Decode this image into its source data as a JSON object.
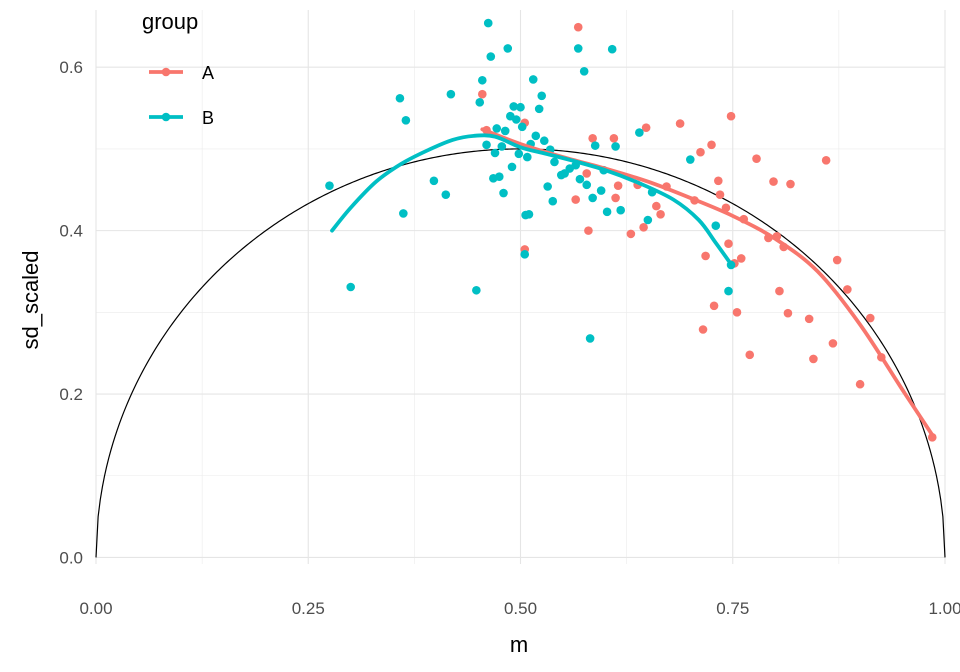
{
  "chart_data": {
    "type": "scatter",
    "title": "",
    "xlabel": "m",
    "ylabel": "sd_scaled",
    "xlim": [
      0,
      1
    ],
    "ylim": [
      -0.008,
      0.67
    ],
    "x_ticks": [
      0.0,
      0.25,
      0.5,
      0.75,
      1.0
    ],
    "x_tick_labels": [
      "0.00",
      "0.25",
      "0.50",
      "0.75",
      "1.00"
    ],
    "y_ticks": [
      0.0,
      0.2,
      0.4,
      0.6
    ],
    "y_tick_labels": [
      "0.0",
      "0.2",
      "0.4",
      "0.6"
    ],
    "grid": true,
    "legend": {
      "title": "group",
      "position": "top-left",
      "entries": [
        "A",
        "B"
      ]
    },
    "reference_curve": {
      "label": "",
      "formula": "sqrt(m*(1-m))",
      "color": "#000000"
    },
    "series": [
      {
        "name": "A",
        "color": "#F8766D",
        "points": [
          [
            0.455,
            0.567
          ],
          [
            0.46,
            0.523
          ],
          [
            0.505,
            0.532
          ],
          [
            0.505,
            0.377
          ],
          [
            0.565,
            0.438
          ],
          [
            0.568,
            0.649
          ],
          [
            0.578,
            0.47
          ],
          [
            0.58,
            0.4
          ],
          [
            0.585,
            0.513
          ],
          [
            0.61,
            0.513
          ],
          [
            0.612,
            0.44
          ],
          [
            0.615,
            0.455
          ],
          [
            0.63,
            0.396
          ],
          [
            0.638,
            0.456
          ],
          [
            0.645,
            0.404
          ],
          [
            0.648,
            0.526
          ],
          [
            0.66,
            0.43
          ],
          [
            0.665,
            0.42
          ],
          [
            0.672,
            0.454
          ],
          [
            0.688,
            0.531
          ],
          [
            0.705,
            0.437
          ],
          [
            0.712,
            0.496
          ],
          [
            0.715,
            0.279
          ],
          [
            0.718,
            0.369
          ],
          [
            0.725,
            0.505
          ],
          [
            0.728,
            0.308
          ],
          [
            0.733,
            0.461
          ],
          [
            0.735,
            0.444
          ],
          [
            0.742,
            0.428
          ],
          [
            0.745,
            0.384
          ],
          [
            0.748,
            0.54
          ],
          [
            0.752,
            0.36
          ],
          [
            0.755,
            0.3
          ],
          [
            0.76,
            0.366
          ],
          [
            0.763,
            0.414
          ],
          [
            0.77,
            0.248
          ],
          [
            0.778,
            0.488
          ],
          [
            0.792,
            0.391
          ],
          [
            0.798,
            0.46
          ],
          [
            0.802,
            0.393
          ],
          [
            0.805,
            0.326
          ],
          [
            0.81,
            0.38
          ],
          [
            0.815,
            0.299
          ],
          [
            0.818,
            0.457
          ],
          [
            0.84,
            0.292
          ],
          [
            0.845,
            0.243
          ],
          [
            0.86,
            0.486
          ],
          [
            0.868,
            0.262
          ],
          [
            0.873,
            0.364
          ],
          [
            0.885,
            0.328
          ],
          [
            0.9,
            0.212
          ],
          [
            0.912,
            0.293
          ],
          [
            0.925,
            0.245
          ],
          [
            0.985,
            0.147
          ]
        ],
        "smooth": [
          [
            0.455,
            0.524
          ],
          [
            0.5,
            0.506
          ],
          [
            0.55,
            0.49
          ],
          [
            0.6,
            0.476
          ],
          [
            0.65,
            0.46
          ],
          [
            0.7,
            0.44
          ],
          [
            0.75,
            0.418
          ],
          [
            0.8,
            0.39
          ],
          [
            0.85,
            0.35
          ],
          [
            0.9,
            0.285
          ],
          [
            0.95,
            0.205
          ],
          [
            0.985,
            0.15
          ]
        ]
      },
      {
        "name": "B",
        "color": "#00BFC4",
        "points": [
          [
            0.275,
            0.455
          ],
          [
            0.3,
            0.331
          ],
          [
            0.358,
            0.562
          ],
          [
            0.362,
            0.421
          ],
          [
            0.365,
            0.535
          ],
          [
            0.398,
            0.461
          ],
          [
            0.412,
            0.444
          ],
          [
            0.418,
            0.567
          ],
          [
            0.448,
            0.327
          ],
          [
            0.452,
            0.557
          ],
          [
            0.455,
            0.584
          ],
          [
            0.46,
            0.505
          ],
          [
            0.462,
            0.654
          ],
          [
            0.465,
            0.613
          ],
          [
            0.468,
            0.464
          ],
          [
            0.47,
            0.495
          ],
          [
            0.472,
            0.525
          ],
          [
            0.475,
            0.466
          ],
          [
            0.478,
            0.503
          ],
          [
            0.48,
            0.446
          ],
          [
            0.482,
            0.522
          ],
          [
            0.485,
            0.623
          ],
          [
            0.488,
            0.54
          ],
          [
            0.49,
            0.478
          ],
          [
            0.492,
            0.552
          ],
          [
            0.495,
            0.536
          ],
          [
            0.498,
            0.494
          ],
          [
            0.5,
            0.551
          ],
          [
            0.502,
            0.527
          ],
          [
            0.505,
            0.371
          ],
          [
            0.506,
            0.419
          ],
          [
            0.508,
            0.49
          ],
          [
            0.51,
            0.42
          ],
          [
            0.512,
            0.506
          ],
          [
            0.515,
            0.585
          ],
          [
            0.518,
            0.516
          ],
          [
            0.522,
            0.549
          ],
          [
            0.525,
            0.565
          ],
          [
            0.528,
            0.51
          ],
          [
            0.532,
            0.454
          ],
          [
            0.535,
            0.499
          ],
          [
            0.538,
            0.436
          ],
          [
            0.54,
            0.484
          ],
          [
            0.548,
            0.468
          ],
          [
            0.552,
            0.47
          ],
          [
            0.558,
            0.476
          ],
          [
            0.565,
            0.48
          ],
          [
            0.568,
            0.623
          ],
          [
            0.57,
            0.463
          ],
          [
            0.575,
            0.595
          ],
          [
            0.578,
            0.456
          ],
          [
            0.582,
            0.268
          ],
          [
            0.585,
            0.44
          ],
          [
            0.588,
            0.504
          ],
          [
            0.595,
            0.449
          ],
          [
            0.598,
            0.474
          ],
          [
            0.602,
            0.423
          ],
          [
            0.608,
            0.622
          ],
          [
            0.612,
            0.503
          ],
          [
            0.618,
            0.425
          ],
          [
            0.64,
            0.52
          ],
          [
            0.65,
            0.413
          ],
          [
            0.655,
            0.447
          ],
          [
            0.7,
            0.487
          ],
          [
            0.73,
            0.406
          ],
          [
            0.745,
            0.326
          ],
          [
            0.748,
            0.358
          ]
        ],
        "smooth": [
          [
            0.278,
            0.4
          ],
          [
            0.3,
            0.428
          ],
          [
            0.33,
            0.46
          ],
          [
            0.36,
            0.482
          ],
          [
            0.39,
            0.498
          ],
          [
            0.42,
            0.511
          ],
          [
            0.445,
            0.516
          ],
          [
            0.47,
            0.515
          ],
          [
            0.5,
            0.502
          ],
          [
            0.53,
            0.494
          ],
          [
            0.56,
            0.486
          ],
          [
            0.6,
            0.474
          ],
          [
            0.64,
            0.458
          ],
          [
            0.68,
            0.438
          ],
          [
            0.71,
            0.413
          ],
          [
            0.73,
            0.385
          ],
          [
            0.75,
            0.356
          ]
        ]
      }
    ]
  }
}
